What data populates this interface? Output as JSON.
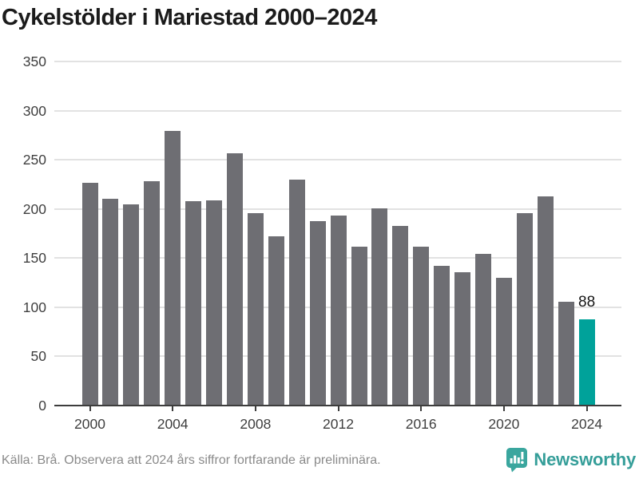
{
  "title": "Cykelstölder i Mariestad 2000–2024",
  "chart_data": {
    "type": "bar",
    "categories": [
      2000,
      2001,
      2002,
      2003,
      2004,
      2005,
      2006,
      2007,
      2008,
      2009,
      2010,
      2011,
      2012,
      2013,
      2014,
      2015,
      2016,
      2017,
      2018,
      2019,
      2020,
      2021,
      2022,
      2023,
      2024
    ],
    "values": [
      227,
      210,
      205,
      228,
      279,
      208,
      209,
      257,
      196,
      172,
      230,
      188,
      193,
      162,
      201,
      183,
      162,
      142,
      136,
      154,
      130,
      196,
      213,
      106,
      88
    ],
    "title": "Cykelstölder i Mariestad 2000–2024",
    "xlabel": "",
    "ylabel": "",
    "ylim": [
      0,
      350
    ],
    "ytick_step": 50,
    "yticks": [
      0,
      50,
      100,
      150,
      200,
      250,
      300,
      350
    ],
    "xticks": [
      2000,
      2004,
      2008,
      2012,
      2016,
      2020,
      2024
    ],
    "grid": "horizontal",
    "legend": "none",
    "highlight_index": 24,
    "highlight_label": "88",
    "bar_color": "#6e6e73",
    "highlight_color": "#00a29a",
    "grid_color": "#e2e2e2",
    "axis_color": "#3d3d3d"
  },
  "footer": {
    "source": "Källa: Brå. Observera att 2024 års siffror fortfarande är preliminära.",
    "brand": "Newsworthy",
    "brand_color": "#359e99",
    "logo_icon": "speech-bubble-bar-chart-icon"
  }
}
